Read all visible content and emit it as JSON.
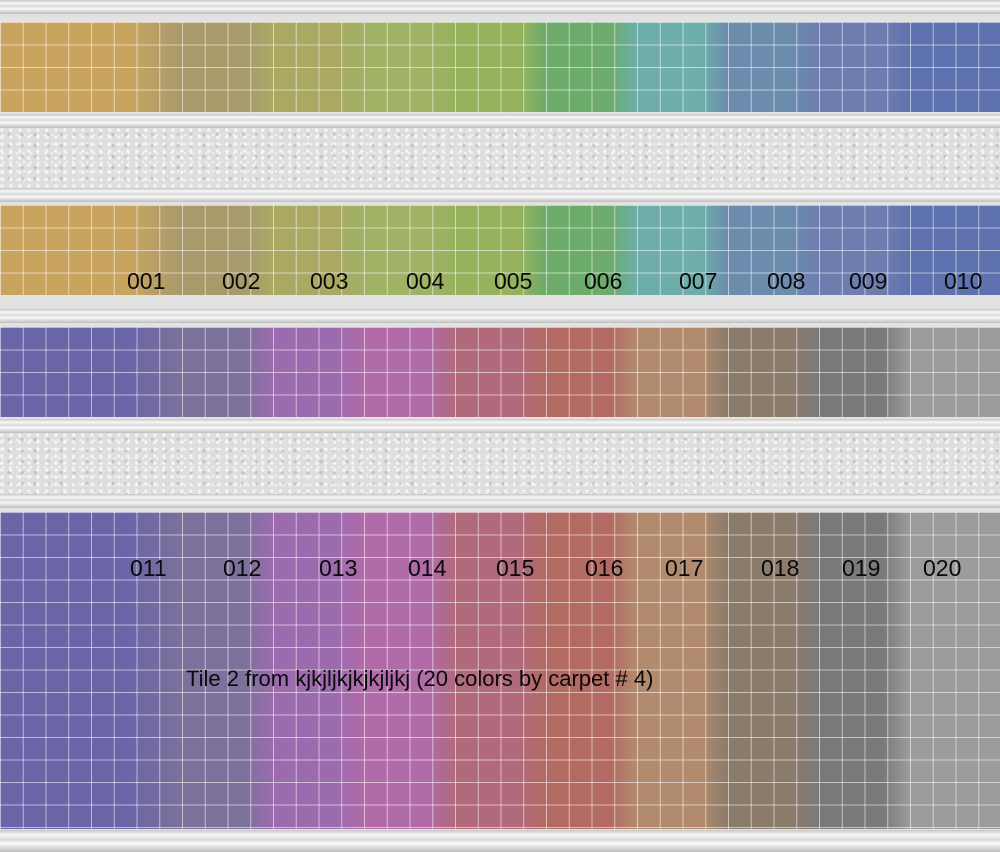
{
  "caption": "Tile 2 from kjkjljkjkjkjljkj (20 colors by carpet # 4)",
  "row1": {
    "labels": [
      "001",
      "002",
      "003",
      "004",
      "005",
      "006",
      "007",
      "008",
      "009",
      "010"
    ],
    "colors": [
      "#c8a45f",
      "#a99a6c",
      "#a9a964",
      "#9fb265",
      "#97b25c",
      "#6cab6a",
      "#6eaeaa",
      "#6b8cad",
      "#6e7db0",
      "#5d72ae"
    ]
  },
  "row2": {
    "labels": [
      "011",
      "012",
      "013",
      "014",
      "015",
      "016",
      "017",
      "018",
      "019",
      "020"
    ],
    "colors": [
      "#6a65a7",
      "#7c719a",
      "#9c6bae",
      "#b16ba8",
      "#b06a7c",
      "#b36a62",
      "#b28b6e",
      "#8b7b6a",
      "#7a7a7a",
      "#9c9c9c"
    ]
  }
}
